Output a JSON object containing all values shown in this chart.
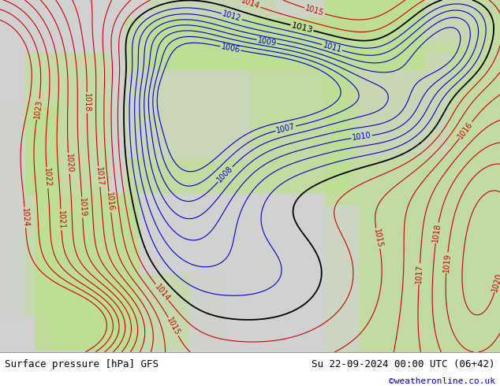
{
  "title_left": "Surface pressure [hPa] GFS",
  "title_right": "Su 22-09-2024 00:00 UTC (06+42)",
  "copyright": "©weatheronline.co.uk",
  "land_green": [
    0.749,
    0.871,
    0.588
  ],
  "sea_gray": [
    0.82,
    0.82,
    0.82
  ],
  "contour_low_color": "#0000cc",
  "contour_mid_color": "#000000",
  "contour_high_color": "#cc0000",
  "label_fontsize": 7,
  "footer_fontsize": 9,
  "copyright_fontsize": 8,
  "copyright_color": "#0000cc",
  "footer_bg": "#e0e0e0"
}
